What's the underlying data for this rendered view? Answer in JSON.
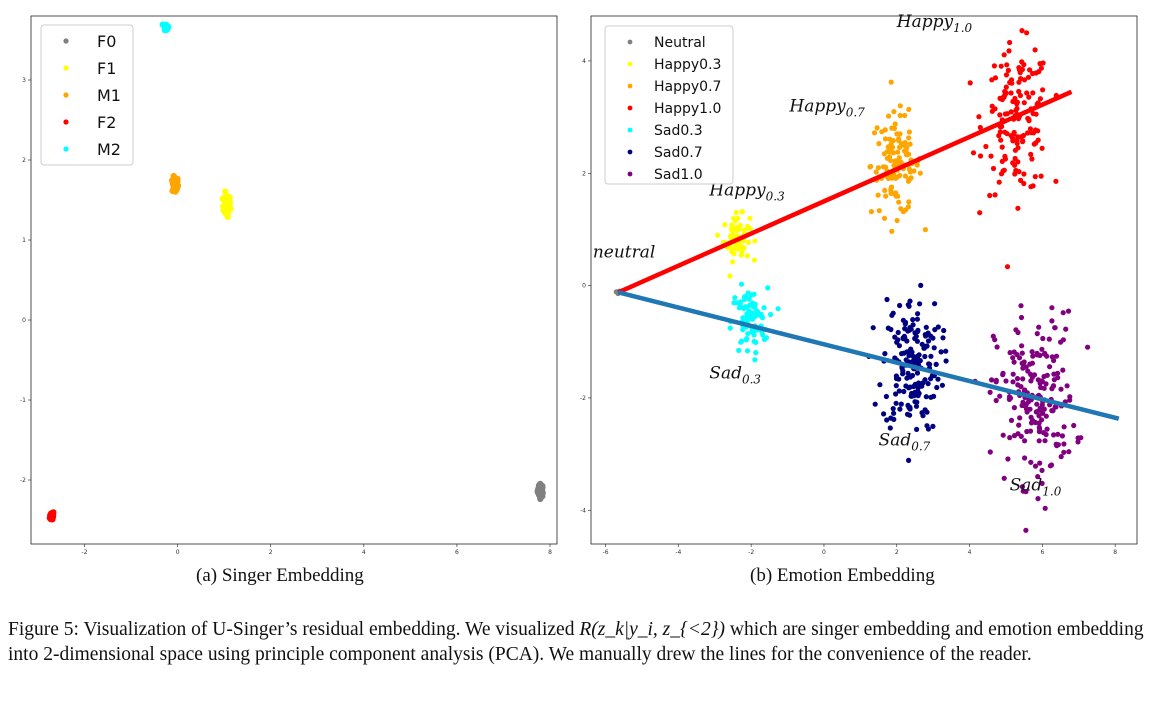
{
  "subcaptions": {
    "a": "(a) Singer Embedding",
    "b": "(b) Emotion Embedding"
  },
  "caption": {
    "lead": "Figure 5: Visualization of U-Singer’s residual embedding. We visualized ",
    "math": "R(z_k|y_i, z_{<2})",
    "tail": " which are singer embedding and emotion embedding into 2-dimensional space using principle component analysis (PCA). We manually drew the lines for the convenience of the reader."
  },
  "chart_data": [
    {
      "type": "scatter",
      "title": "",
      "xlim": [
        -3.15,
        8.15
      ],
      "ylim": [
        -2.8,
        3.8
      ],
      "xticks": [
        "-2",
        "0",
        "2",
        "4",
        "6",
        "8"
      ],
      "yticks": [
        "-2",
        "-1",
        "0",
        "1",
        "2",
        "3"
      ],
      "legend": {
        "position": "top-left"
      },
      "series": [
        {
          "name": "F0",
          "color": "#808080",
          "center": [
            7.8,
            -2.13
          ],
          "spread": [
            0.03,
            0.04
          ],
          "count": 40
        },
        {
          "name": "F1",
          "color": "#ffff00",
          "center": [
            1.05,
            1.43
          ],
          "spread": [
            0.04,
            0.07
          ],
          "count": 50
        },
        {
          "name": "M1",
          "color": "#ffa500",
          "center": [
            -0.05,
            1.69
          ],
          "spread": [
            0.03,
            0.05
          ],
          "count": 50
        },
        {
          "name": "F2",
          "color": "#ff0000",
          "center": [
            -2.7,
            -2.45
          ],
          "spread": [
            0.02,
            0.03
          ],
          "count": 30
        },
        {
          "name": "M2",
          "color": "#00ffff",
          "center": [
            -0.25,
            3.67
          ],
          "spread": [
            0.02,
            0.02
          ],
          "count": 20
        }
      ]
    },
    {
      "type": "scatter",
      "title": "",
      "xlim": [
        -6.4,
        8.6
      ],
      "ylim": [
        -4.6,
        4.8
      ],
      "xticks": [
        "-6",
        "-4",
        "-2",
        "0",
        "2",
        "4",
        "6",
        "8"
      ],
      "yticks": [
        "-4",
        "-2",
        "0",
        "2",
        "4"
      ],
      "legend": {
        "position": "top-left"
      },
      "series": [
        {
          "name": "Neutral",
          "color": "#808080",
          "center": [
            -5.65,
            -0.12
          ],
          "spread": [
            0.04,
            0.04
          ],
          "count": 3
        },
        {
          "name": "Happy0.3",
          "color": "#ffff00",
          "center": [
            -2.4,
            0.85
          ],
          "spread": [
            0.18,
            0.2
          ],
          "count": 70
        },
        {
          "name": "Happy0.7",
          "color": "#ffa500",
          "center": [
            2.0,
            2.15
          ],
          "spread": [
            0.35,
            0.45
          ],
          "count": 120
        },
        {
          "name": "Happy1.0",
          "color": "#ff0000",
          "center": [
            5.3,
            2.95
          ],
          "spread": [
            0.45,
            0.65
          ],
          "count": 150
        },
        {
          "name": "Sad0.3",
          "color": "#00ffff",
          "center": [
            -2.05,
            -0.65
          ],
          "spread": [
            0.25,
            0.3
          ],
          "count": 90
        },
        {
          "name": "Sad0.7",
          "color": "#000080",
          "center": [
            2.4,
            -1.4
          ],
          "spread": [
            0.4,
            0.6
          ],
          "count": 180
        },
        {
          "name": "Sad1.0",
          "color": "#800080",
          "center": [
            5.8,
            -2.0
          ],
          "spread": [
            0.55,
            0.75
          ],
          "count": 200
        }
      ],
      "lines": [
        {
          "color": "#ff0000",
          "from": [
            -5.65,
            -0.12
          ],
          "to": [
            6.8,
            3.45
          ]
        },
        {
          "color": "#1f77b4",
          "from": [
            -5.65,
            -0.12
          ],
          "to": [
            8.1,
            -2.37
          ]
        }
      ],
      "annotations": [
        {
          "base": "neutral",
          "sub": "",
          "x": -6.35,
          "y": 0.5
        },
        {
          "base": "Happy",
          "sub": "0.3",
          "x": -3.15,
          "y": 1.6
        },
        {
          "base": "Happy",
          "sub": "0.7",
          "x": -0.95,
          "y": 3.1
        },
        {
          "base": "Happy",
          "sub": "1.0",
          "x": 2.0,
          "y": 4.6
        },
        {
          "base": "Sad",
          "sub": "0.3",
          "x": -3.15,
          "y": -1.65
        },
        {
          "base": "Sad",
          "sub": "0.7",
          "x": 1.5,
          "y": -2.85
        },
        {
          "base": "Sad",
          "sub": "1.0",
          "x": 5.1,
          "y": -3.65
        }
      ]
    }
  ]
}
